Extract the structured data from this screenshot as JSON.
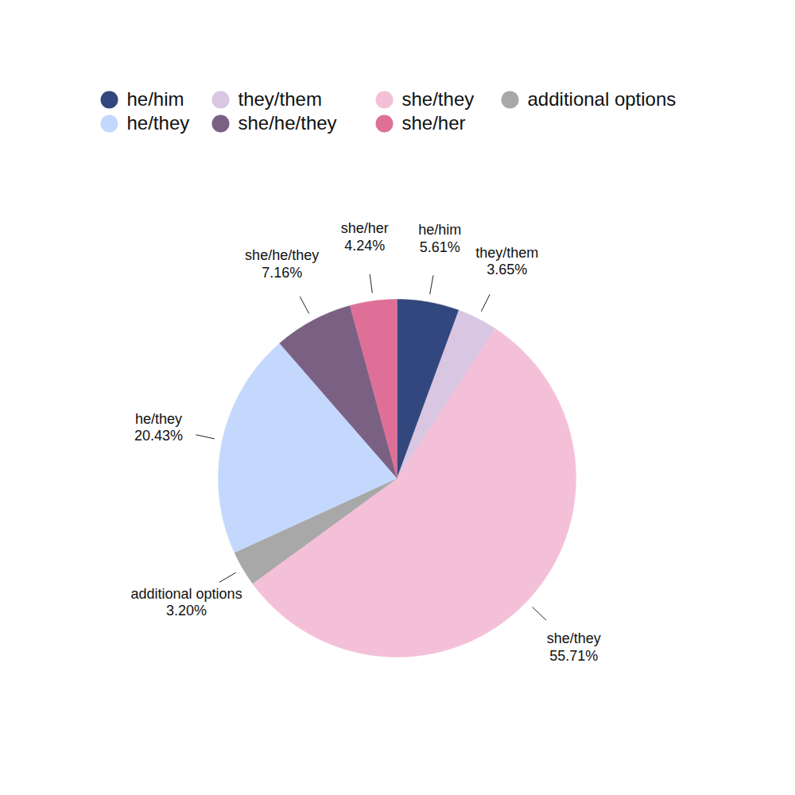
{
  "chart_data": {
    "type": "pie",
    "categories": [
      "he/him",
      "they/them",
      "she/they",
      "additional options",
      "he/they",
      "she/he/they",
      "she/her"
    ],
    "values": [
      5.61,
      3.65,
      55.71,
      3.2,
      20.43,
      7.16,
      4.24
    ],
    "value_labels": [
      "5.61%",
      "3.65%",
      "55.71%",
      "3.20%",
      "20.43%",
      "7.16%",
      "4.24%"
    ],
    "colors": [
      "#32477d",
      "#d8c6e2",
      "#f4c0d8",
      "#a8a8a8",
      "#c4d8fd",
      "#7a6183",
      "#de7098"
    ],
    "data_labels": true,
    "legend": "top"
  }
}
